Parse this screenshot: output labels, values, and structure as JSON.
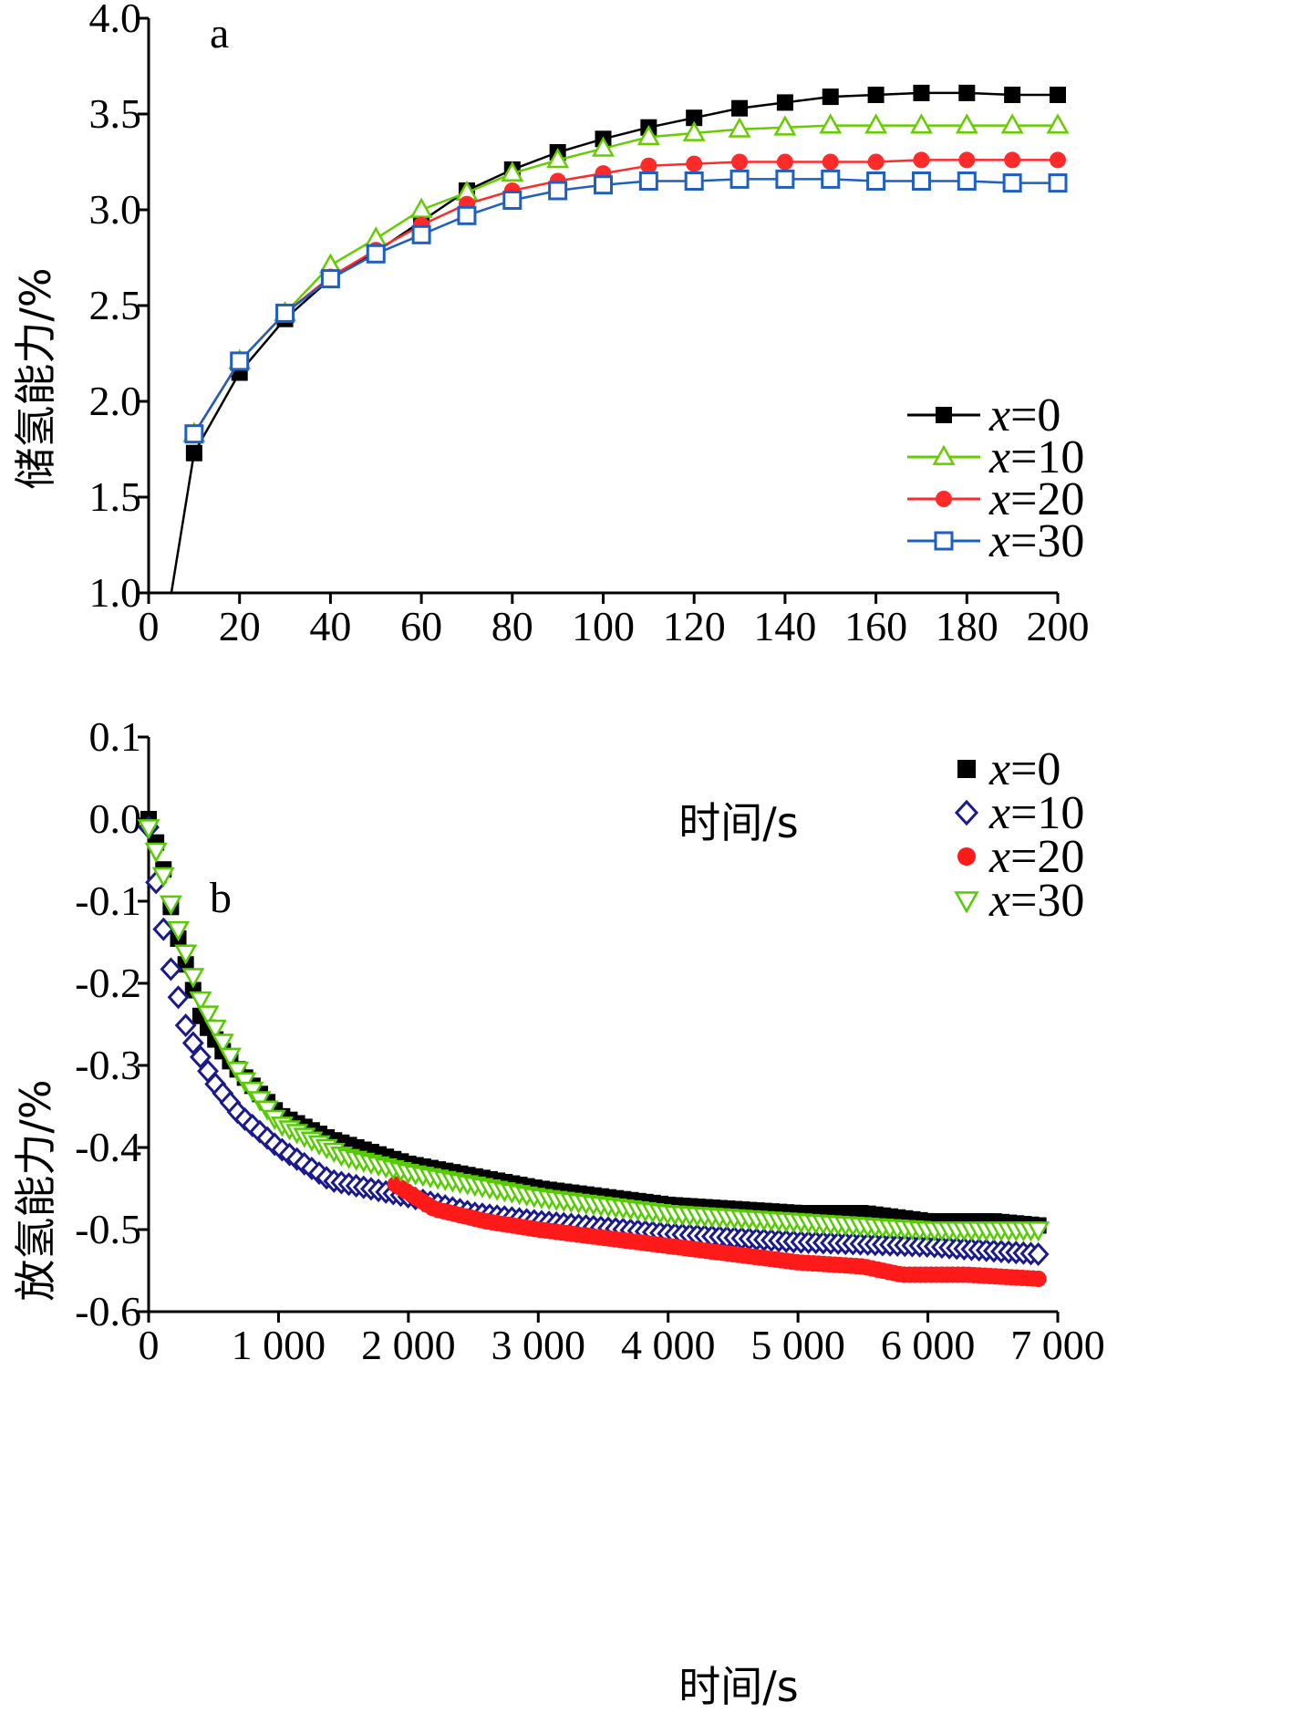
{
  "chart_data": [
    {
      "type": "line",
      "panel_label": "a",
      "xlabel": "时间/s",
      "ylabel": "储氢能力/%",
      "xlim": [
        0,
        200
      ],
      "ylim": [
        1.0,
        4.0
      ],
      "xticks": [
        "0",
        "20",
        "40",
        "60",
        "80",
        "100",
        "120",
        "140",
        "160",
        "180",
        "200"
      ],
      "yticks": [
        "1.0",
        "1.5",
        "2.0",
        "2.5",
        "3.0",
        "3.5",
        "4.0"
      ],
      "legend_position": "right-middle",
      "series": [
        {
          "name": "x=0",
          "var": "x",
          "suffix": "=0",
          "color": "#000000",
          "marker": "square-filled",
          "x": [
            5,
            10,
            20,
            30,
            40,
            50,
            60,
            70,
            80,
            90,
            100,
            110,
            120,
            130,
            140,
            150,
            160,
            170,
            180,
            190,
            200
          ],
          "y": [
            1.0,
            1.73,
            2.15,
            2.43,
            2.64,
            2.78,
            2.94,
            3.1,
            3.21,
            3.3,
            3.37,
            3.43,
            3.48,
            3.53,
            3.56,
            3.59,
            3.6,
            3.61,
            3.61,
            3.6,
            3.6
          ]
        },
        {
          "name": "x=10",
          "var": "x",
          "suffix": "=10",
          "color": "#66cc00",
          "marker": "triangle-open",
          "x": [
            10,
            20,
            30,
            40,
            50,
            60,
            70,
            80,
            90,
            100,
            110,
            120,
            130,
            140,
            150,
            160,
            170,
            180,
            190,
            200
          ],
          "y": [
            1.83,
            2.21,
            2.46,
            2.71,
            2.85,
            3.0,
            3.09,
            3.19,
            3.26,
            3.32,
            3.38,
            3.4,
            3.42,
            3.43,
            3.44,
            3.44,
            3.44,
            3.44,
            3.44,
            3.44
          ]
        },
        {
          "name": "x=20",
          "var": "x",
          "suffix": "=20",
          "color": "#ff2a2a",
          "marker": "circle-filled",
          "x": [
            10,
            20,
            30,
            40,
            50,
            60,
            70,
            80,
            90,
            100,
            110,
            120,
            130,
            140,
            150,
            160,
            170,
            180,
            190,
            200
          ],
          "y": [
            1.83,
            2.21,
            2.46,
            2.65,
            2.79,
            2.92,
            3.03,
            3.1,
            3.15,
            3.19,
            3.23,
            3.24,
            3.25,
            3.25,
            3.25,
            3.25,
            3.26,
            3.26,
            3.26,
            3.26
          ]
        },
        {
          "name": "x=30",
          "var": "x",
          "suffix": "=30",
          "color": "#1f5fbf",
          "marker": "square-open",
          "x": [
            10,
            20,
            30,
            40,
            50,
            60,
            70,
            80,
            90,
            100,
            110,
            120,
            130,
            140,
            150,
            160,
            170,
            180,
            190,
            200
          ],
          "y": [
            1.83,
            2.21,
            2.46,
            2.64,
            2.77,
            2.87,
            2.97,
            3.05,
            3.1,
            3.13,
            3.15,
            3.15,
            3.16,
            3.16,
            3.16,
            3.15,
            3.15,
            3.15,
            3.14,
            3.14
          ]
        }
      ]
    },
    {
      "type": "scatter",
      "panel_label": "b",
      "xlabel": "时间/s",
      "ylabel": "放氢能力/%",
      "xlim": [
        0,
        7000
      ],
      "ylim": [
        -0.6,
        0.1
      ],
      "xticks": [
        "0",
        "1 000",
        "2 000",
        "3 000",
        "4 000",
        "5 000",
        "6 000",
        "7 000"
      ],
      "yticks": [
        "-0.6",
        "-0.5",
        "-0.4",
        "-0.3",
        "-0.2",
        "-0.1",
        "0.0",
        "0.1"
      ],
      "legend_position": "top-right",
      "series": [
        {
          "name": "x=0",
          "var": "x",
          "suffix": "=0",
          "color": "#000000",
          "marker": "square-filled",
          "x": [
            0,
            100,
            200,
            400,
            600,
            1000,
            1400,
            2000,
            3000,
            4000,
            5000,
            5500,
            6000,
            6500,
            6850
          ],
          "y": [
            0.0,
            -0.05,
            -0.13,
            -0.24,
            -0.29,
            -0.36,
            -0.39,
            -0.42,
            -0.45,
            -0.47,
            -0.48,
            -0.48,
            -0.49,
            -0.49,
            -0.495
          ]
        },
        {
          "name": "x=10",
          "var": "x",
          "suffix": "=10",
          "color": "#1a1a8c",
          "marker": "diamond-open",
          "x": [
            0,
            50,
            150,
            300,
            500,
            700,
            1000,
            1400,
            2000,
            2500,
            3000,
            4000,
            5000,
            6000,
            6850
          ],
          "y": [
            -0.01,
            -0.07,
            -0.17,
            -0.26,
            -0.32,
            -0.36,
            -0.4,
            -0.44,
            -0.46,
            -0.48,
            -0.49,
            -0.505,
            -0.515,
            -0.52,
            -0.53
          ]
        },
        {
          "name": "x=20",
          "var": "x",
          "suffix": "=20",
          "color": "#ff1a1a",
          "marker": "circle-filled",
          "x": [
            1900,
            2200,
            2600,
            3000,
            3500,
            4000,
            4500,
            5000,
            5500,
            5800,
            6300,
            6850
          ],
          "y": [
            -0.445,
            -0.475,
            -0.49,
            -0.5,
            -0.51,
            -0.52,
            -0.53,
            -0.54,
            -0.545,
            -0.555,
            -0.555,
            -0.56
          ]
        },
        {
          "name": "x=30",
          "var": "x",
          "suffix": "=30",
          "color": "#55cc00",
          "marker": "triangle-down-open",
          "x": [
            0,
            100,
            200,
            400,
            700,
            1000,
            1500,
            2000,
            3000,
            4000,
            5000,
            6000,
            6850
          ],
          "y": [
            -0.01,
            -0.06,
            -0.12,
            -0.22,
            -0.31,
            -0.37,
            -0.41,
            -0.43,
            -0.46,
            -0.48,
            -0.49,
            -0.5,
            -0.5
          ]
        }
      ]
    }
  ]
}
